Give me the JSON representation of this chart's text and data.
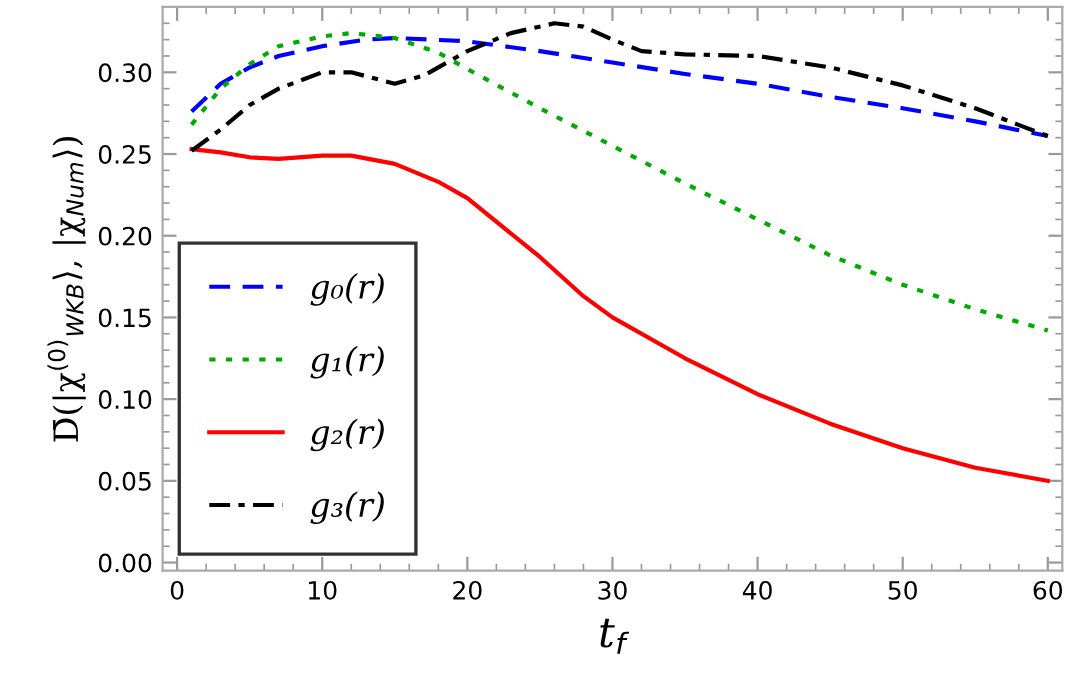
{
  "chart_data": {
    "type": "line",
    "xlabel": "t$_{f}$",
    "ylabel": "D̄(|χ$^{(0)}$$_{WKB}$⟩, |χ$_{Num}$⟩)",
    "xlim": [
      -1,
      61
    ],
    "ylim": [
      -0.005,
      0.34
    ],
    "xticks": [
      0,
      10,
      20,
      30,
      40,
      50,
      60
    ],
    "yticks": [
      {
        "value": 0,
        "label": "0.00"
      },
      {
        "value": 0.05,
        "label": "0.05"
      },
      {
        "value": 0.1,
        "label": "0.10"
      },
      {
        "value": 0.15,
        "label": "0.15"
      },
      {
        "value": 0.2,
        "label": "0.20"
      },
      {
        "value": 0.25,
        "label": "0.25"
      },
      {
        "value": 0.3,
        "label": "0.30"
      }
    ],
    "grid": false,
    "legend": "lower left",
    "marker": "none",
    "series": [
      {
        "name": "g₀(r)",
        "color": "#0000ff",
        "line_style": "dashed",
        "x": [
          1,
          3,
          5,
          7,
          10,
          13,
          15,
          20,
          25,
          30,
          35,
          40,
          45,
          50,
          55,
          60
        ],
        "values": [
          0.276,
          0.293,
          0.303,
          0.31,
          0.316,
          0.32,
          0.321,
          0.319,
          0.313,
          0.306,
          0.299,
          0.293,
          0.285,
          0.278,
          0.27,
          0.261
        ]
      },
      {
        "name": "g₁(r)",
        "color": "#00aa00",
        "line_style": "dotted",
        "x": [
          1,
          3,
          5,
          7,
          10,
          12,
          15,
          18,
          20,
          25,
          30,
          35,
          40,
          45,
          50,
          55,
          60
        ],
        "values": [
          0.268,
          0.29,
          0.305,
          0.316,
          0.322,
          0.324,
          0.321,
          0.312,
          0.302,
          0.278,
          0.255,
          0.232,
          0.21,
          0.188,
          0.17,
          0.155,
          0.142
        ]
      },
      {
        "name": "g₂(r)",
        "color": "#ff0000",
        "line_style": "solid",
        "x": [
          1,
          3,
          5,
          7,
          10,
          12,
          15,
          18,
          20,
          25,
          28,
          30,
          35,
          40,
          45,
          50,
          55,
          60
        ],
        "values": [
          0.253,
          0.251,
          0.248,
          0.247,
          0.249,
          0.249,
          0.244,
          0.233,
          0.223,
          0.187,
          0.163,
          0.15,
          0.125,
          0.103,
          0.085,
          0.07,
          0.058,
          0.05
        ]
      },
      {
        "name": "g₃(r)",
        "color": "#000000",
        "line_style": "dashdot",
        "x": [
          1,
          3,
          5,
          7,
          10,
          12,
          15,
          17,
          20,
          23,
          26,
          28,
          30,
          32,
          35,
          40,
          45,
          50,
          55,
          60
        ],
        "values": [
          0.252,
          0.265,
          0.28,
          0.29,
          0.3,
          0.3,
          0.293,
          0.298,
          0.313,
          0.324,
          0.33,
          0.328,
          0.32,
          0.313,
          0.311,
          0.31,
          0.303,
          0.292,
          0.278,
          0.261
        ]
      }
    ]
  }
}
